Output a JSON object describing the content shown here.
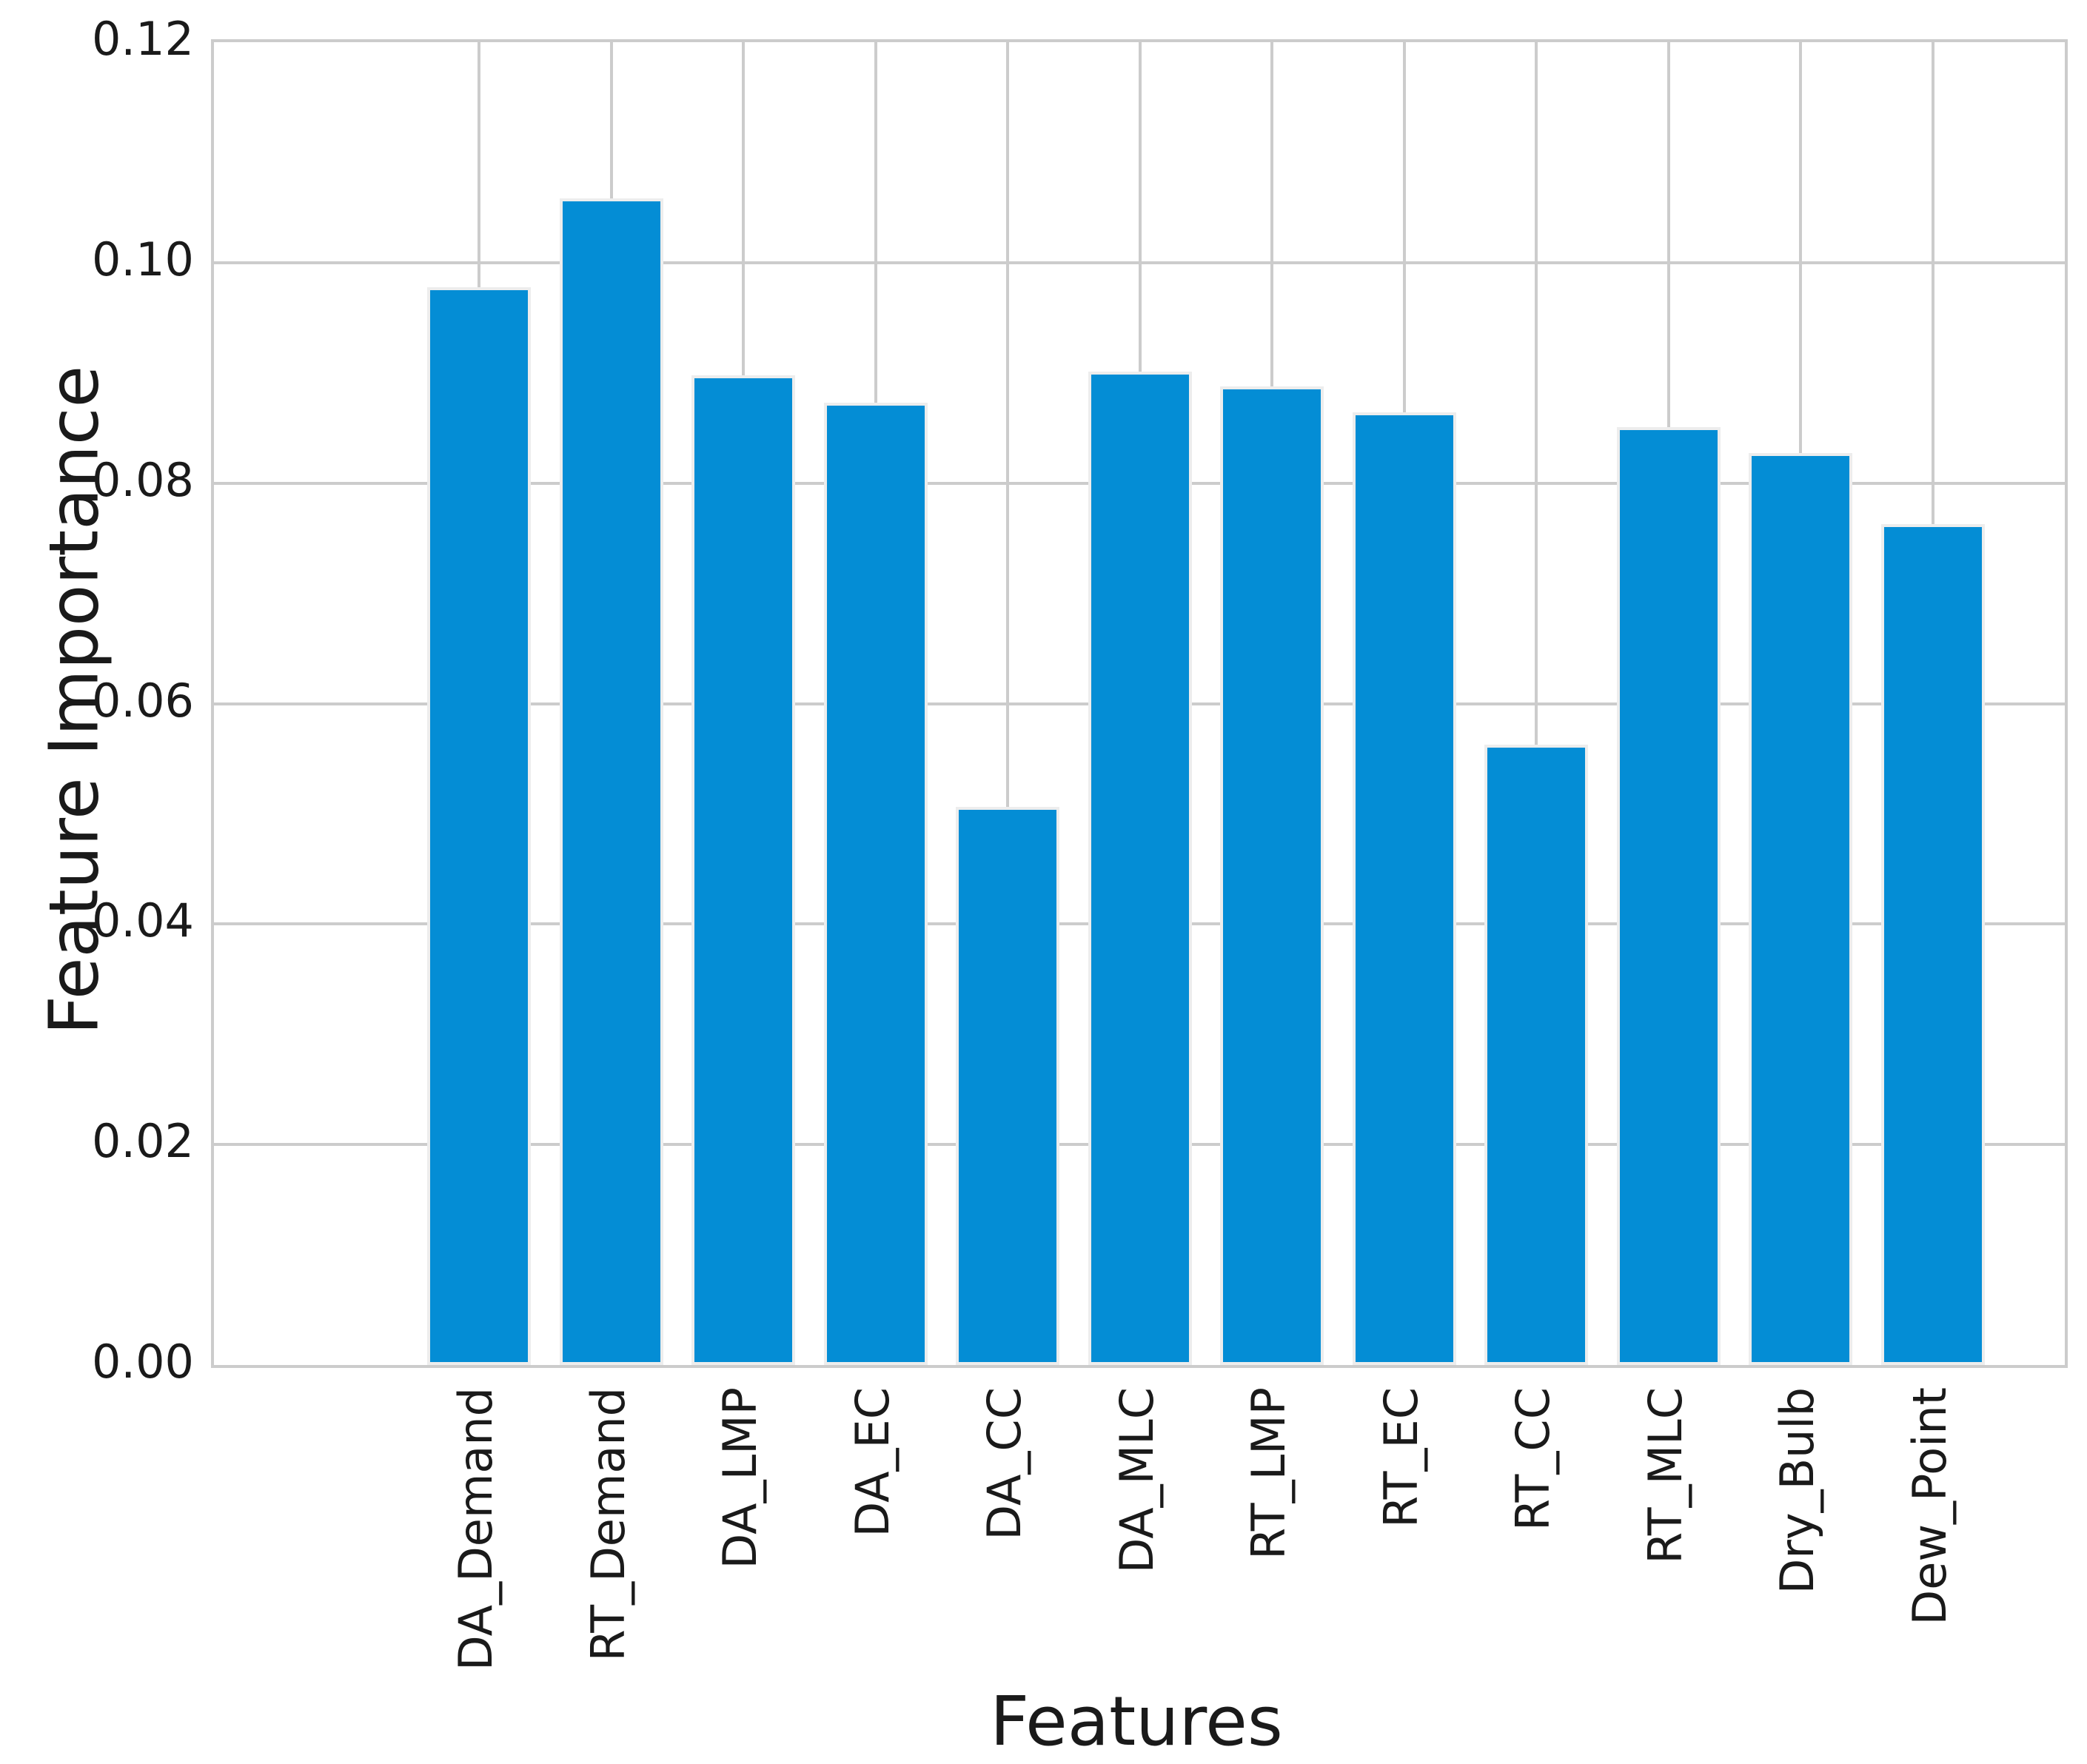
{
  "figure": {
    "background_color": "#ffffff",
    "text_color": "#1a1a1a",
    "grid_color": "#cccccc",
    "bar_color": "#048dd5",
    "bar_edge_color": "#ededed"
  },
  "chart_data": {
    "type": "bar",
    "title": "",
    "xlabel": "Features",
    "ylabel": "Feature Importance",
    "categories": [
      "DA_Demand",
      "RT_Demand",
      "DA_LMP",
      "DA_EC",
      "DA_CC",
      "DA_MLC",
      "RT_LMP",
      "RT_EC",
      "RT_CC",
      "RT_MLC",
      "Dry_Bulb",
      "Dew_Point"
    ],
    "values": [
      0.0978,
      0.1058,
      0.0898,
      0.0873,
      0.0506,
      0.0901,
      0.0888,
      0.0864,
      0.0563,
      0.0851,
      0.0827,
      0.0763
    ],
    "ylim": [
      0,
      0.12
    ],
    "ytick_values": [
      0.0,
      0.02,
      0.04,
      0.06,
      0.08,
      0.1,
      0.12
    ],
    "ytick_labels": [
      "0.00",
      "0.02",
      "0.04",
      "0.06",
      "0.08",
      "0.10",
      "0.12"
    ],
    "x_tick_rotation_degrees": 90,
    "grid": "on",
    "legend": "none"
  }
}
